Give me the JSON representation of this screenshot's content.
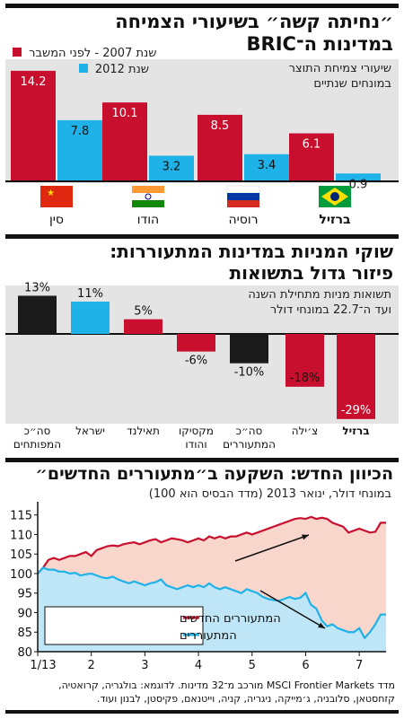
{
  "chart1": {
    "title_line1": "״נחיתה קשה״ בשיעורי הצמיחה",
    "title_line2": "במדינות ה־BRIC",
    "legend": [
      "שנת 2007 - לפני המשבר",
      "שנת 2012"
    ],
    "note_line1": "שיעורי צמיחת התוצר",
    "note_line2": "במונחים שנתיים",
    "colors": {
      "red": "#c8102e",
      "blue": "#1fb2e8"
    }
  },
  "chart2": {
    "title_line1": "שוקי המניות במדינות המתעוררות:",
    "title_line2": "פיזור גדול בתשואות",
    "note_line1": "תשואות מניות מתחילת השנה",
    "note_line2": "ועד ה־22.7 במונחי דולר",
    "colors": {
      "black": "#1a1a1a",
      "blue": "#1fb2e8",
      "red": "#c8102e"
    }
  },
  "chart3": {
    "title": "הכיוון החדש: השקעה ב״מתעוררים החדשים״",
    "subtitle": "במונחי דולר, ינואר 2013 (מדד הבסיס הוא 100)",
    "legend": [
      "המתעוררים החדשים",
      "המתעוררים"
    ],
    "colors": {
      "red": "#c8102e",
      "blue": "#1fb2e8",
      "redfill": "#f8d6cc",
      "bluefill": "#bfe6f7"
    }
  },
  "footer": {
    "line1": "מדד MSCI Frontier Markets מורכב מ־32 מדינות. לדוגמא: בולגריה, קרואטיה,",
    "line2": "קזחסטאן, סלובניה, ג׳מייקה, ניגריה, קניה, וייטנאם, פקיסטן, לבנון ועוד."
  },
  "chart_data": [
    {
      "type": "bar",
      "title": "״נחיתה קשה״ בשיעורי הצמיחה במדינות ה־BRIC",
      "categories": [
        "סין",
        "הודו",
        "רוסיה",
        "ברזיל"
      ],
      "category_flags": [
        "china",
        "india",
        "russia",
        "brazil"
      ],
      "series": [
        {
          "name": "שנת 2007 - לפני המשבר",
          "values": [
            14.2,
            10.1,
            8.5,
            6.1
          ],
          "labels": [
            "14.2",
            "10.1",
            "8.5",
            "6.1"
          ]
        },
        {
          "name": "שנת 2012",
          "values": [
            7.8,
            3.2,
            3.4,
            0.9
          ],
          "labels": [
            "7.8",
            "3.2",
            "3.4",
            "0.9"
          ]
        }
      ],
      "ylim": [
        0,
        15
      ],
      "grid": false,
      "legend_position": "top-right"
    },
    {
      "type": "bar",
      "title": "שוקי המניות במדינות המתעוררות: פיזור גדול בתשואות",
      "categories": [
        "ברזיל",
        "צ׳ילה",
        "סה״כ המתעוררים",
        "מקסיקו והודו",
        "תאילנד",
        "ישראל",
        "סה״כ המפותחים"
      ],
      "values": [
        -29,
        -18,
        -10,
        -6,
        5,
        11,
        13
      ],
      "value_labels": [
        "-29%",
        "-18%",
        "-10%",
        "-6%",
        "5%",
        "11%",
        "13%"
      ],
      "colors": [
        "red",
        "red",
        "black",
        "red",
        "red",
        "blue",
        "black"
      ],
      "ylim": [
        -30,
        14
      ],
      "grid": false
    },
    {
      "type": "area",
      "title": "הכיוון החדש: השקעה ב״מתעוררים החדשים״",
      "xlabel": "",
      "x_ticks": [
        "1/13",
        "2",
        "3",
        "4",
        "5",
        "6",
        "7"
      ],
      "y_ticks": [
        80,
        85,
        90,
        95,
        100,
        105,
        110,
        115
      ],
      "ylim": [
        80,
        117
      ],
      "grid": false,
      "legend_position": "bottom-left",
      "series": [
        {
          "name": "המתעוררים החדשים",
          "color": "red",
          "x": [
            1.0,
            1.1,
            1.2,
            1.3,
            1.4,
            1.5,
            1.6,
            1.7,
            1.8,
            1.9,
            2.0,
            2.1,
            2.2,
            2.3,
            2.4,
            2.5,
            2.6,
            2.7,
            2.8,
            2.9,
            3.0,
            3.1,
            3.2,
            3.3,
            3.4,
            3.5,
            3.6,
            3.7,
            3.8,
            3.9,
            4.0,
            4.1,
            4.2,
            4.3,
            4.4,
            4.5,
            4.6,
            4.7,
            4.8,
            4.9,
            5.0,
            5.1,
            5.2,
            5.3,
            5.4,
            5.5,
            5.6,
            5.7,
            5.8,
            5.9,
            6.0,
            6.1,
            6.2,
            6.3,
            6.4,
            6.5,
            6.6,
            6.7,
            6.8,
            6.9,
            7.0,
            7.1,
            7.2,
            7.3,
            7.4,
            7.5
          ],
          "values": [
            100,
            101.5,
            103.5,
            104,
            103.5,
            104,
            104.5,
            104.5,
            105,
            105.5,
            104.5,
            106,
            106.5,
            107,
            107.2,
            107,
            107.5,
            107.8,
            108,
            107.5,
            108,
            108.5,
            108.8,
            108,
            108.5,
            109,
            108.8,
            108.5,
            108,
            108.5,
            109,
            108.5,
            109.5,
            109,
            109.5,
            109,
            109.5,
            109.5,
            110,
            110.5,
            110,
            110.5,
            111,
            111.5,
            112,
            112.5,
            113,
            113.5,
            114,
            114.2,
            114,
            114.5,
            114,
            114.3,
            114,
            113,
            112.5,
            112,
            110.5,
            111,
            111.5,
            111,
            110.5,
            110.7,
            113,
            113
          ]
        },
        {
          "name": "המתעוררים",
          "color": "blue",
          "x": [
            1.0,
            1.1,
            1.2,
            1.3,
            1.4,
            1.5,
            1.6,
            1.7,
            1.8,
            1.9,
            2.0,
            2.1,
            2.2,
            2.3,
            2.4,
            2.5,
            2.6,
            2.7,
            2.8,
            2.9,
            3.0,
            3.1,
            3.2,
            3.3,
            3.4,
            3.5,
            3.6,
            3.7,
            3.8,
            3.9,
            4.0,
            4.1,
            4.2,
            4.3,
            4.4,
            4.5,
            4.6,
            4.7,
            4.8,
            4.9,
            5.0,
            5.1,
            5.2,
            5.3,
            5.4,
            5.5,
            5.6,
            5.7,
            5.8,
            5.9,
            6.0,
            6.1,
            6.2,
            6.3,
            6.4,
            6.5,
            6.6,
            6.7,
            6.8,
            6.9,
            7.0,
            7.1,
            7.2,
            7.3,
            7.4,
            7.5
          ],
          "values": [
            100,
            101.5,
            101,
            101,
            100.5,
            100.5,
            100,
            100.2,
            99.5,
            99.8,
            100,
            99.5,
            99,
            98.8,
            99.2,
            98.5,
            98,
            97.5,
            98,
            97.5,
            97,
            97.5,
            97.8,
            98.5,
            97,
            96.5,
            96,
            96.5,
            97,
            96.5,
            97,
            96.5,
            97.5,
            96.5,
            96,
            96.5,
            96,
            95.5,
            95,
            96,
            95.5,
            95,
            94,
            93.5,
            93.2,
            93,
            93.5,
            94,
            93.5,
            93.8,
            95,
            92,
            91,
            88,
            86.5,
            87,
            86,
            85.5,
            85,
            85,
            86,
            83.5,
            85,
            87,
            89.5,
            89.5
          ]
        }
      ]
    }
  ]
}
